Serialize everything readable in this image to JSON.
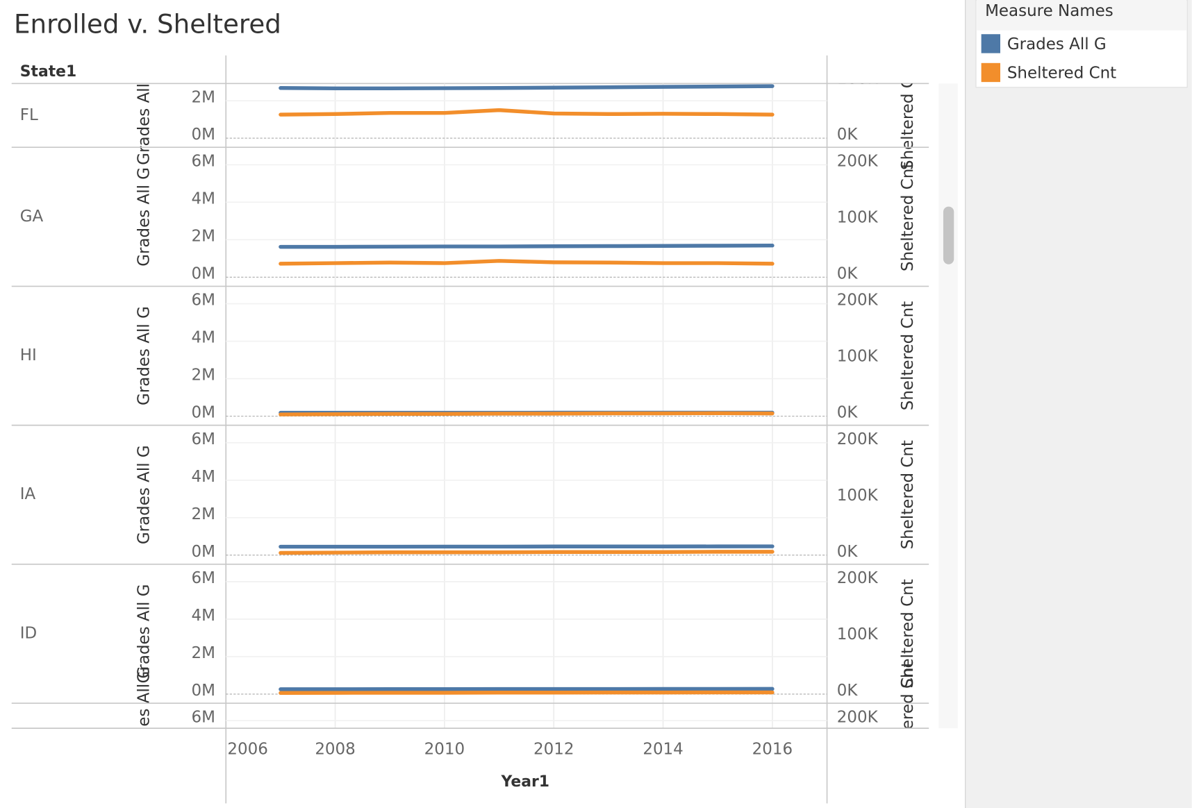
{
  "chart_data": {
    "type": "line",
    "title": "Enrolled v. Sheltered",
    "row_header": "State1",
    "x_label": "Year1",
    "y_label": "Grades All G",
    "y2_label": "Sheltered Cnt",
    "x": [
      2007,
      2008,
      2009,
      2010,
      2011,
      2012,
      2013,
      2014,
      2015,
      2016
    ],
    "xlim": [
      2006,
      2017
    ],
    "xticks": [
      2006,
      2008,
      2010,
      2012,
      2014,
      2016
    ],
    "ylim": [
      0,
      6000000
    ],
    "yticks": [
      {
        "value": 0,
        "label": "0M"
      },
      {
        "value": 2000000,
        "label": "2M"
      },
      {
        "value": 4000000,
        "label": "4M"
      },
      {
        "value": 6000000,
        "label": "6M"
      }
    ],
    "y2lim": [
      0,
      200000
    ],
    "y2ticks": [
      {
        "value": 0,
        "label": "0K"
      },
      {
        "value": 100000,
        "label": "100K"
      },
      {
        "value": 200000,
        "label": "200K"
      }
    ],
    "grid": true,
    "legend": {
      "title": "Measure Names",
      "position": "top-right"
    },
    "series": [
      {
        "name": "Grades All G",
        "color": "#4e79a7",
        "axis": "y"
      },
      {
        "name": "Sheltered Cnt",
        "color": "#f28e2b",
        "axis": "y2"
      }
    ],
    "panels": [
      {
        "name": "FL",
        "values": [
          [
            2680000,
            2660000,
            2660000,
            2670000,
            2680000,
            2700000,
            2720000,
            2740000,
            2760000,
            2780000
          ],
          [
            42000,
            43000,
            45000,
            45000,
            50000,
            44000,
            43000,
            43500,
            43000,
            42000
          ]
        ]
      },
      {
        "name": "GA",
        "values": [
          [
            1620000,
            1620000,
            1630000,
            1640000,
            1640000,
            1650000,
            1660000,
            1670000,
            1680000,
            1690000
          ],
          [
            24000,
            25000,
            26000,
            25000,
            29000,
            26500,
            26000,
            25000,
            25000,
            24000
          ]
        ]
      },
      {
        "name": "HI",
        "values": [
          [
            180000,
            180000,
            180000,
            182000,
            183000,
            184000,
            185000,
            186000,
            187000,
            188000
          ],
          [
            3000,
            3500,
            4000,
            4000,
            4500,
            4500,
            5000,
            5000,
            5200,
            4800
          ]
        ]
      },
      {
        "name": "IA",
        "values": [
          [
            450000,
            450000,
            450000,
            455000,
            455000,
            460000,
            460000,
            462000,
            465000,
            468000
          ],
          [
            4000,
            4500,
            5000,
            5000,
            5000,
            5500,
            5500,
            5500,
            6000,
            6000
          ]
        ]
      },
      {
        "name": "ID",
        "values": [
          [
            260000,
            262000,
            264000,
            266000,
            268000,
            270000,
            272000,
            274000,
            276000,
            278000
          ],
          [
            2000,
            2200,
            2400,
            2400,
            2600,
            2600,
            2800,
            2800,
            3000,
            3000
          ]
        ]
      }
    ]
  }
}
